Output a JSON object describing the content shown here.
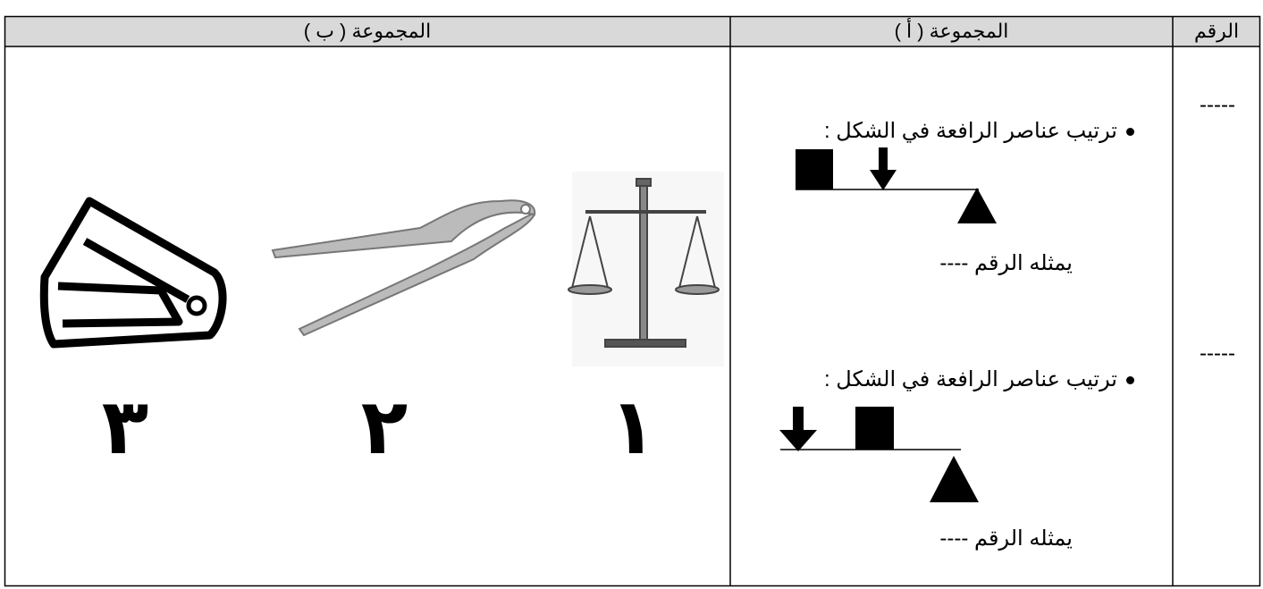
{
  "table": {
    "headers": [
      "الرقم",
      "المجموعة ( أ )",
      "المجموعة ( ب )"
    ],
    "number_column": [
      "-----",
      "-----"
    ],
    "group_a": [
      {
        "prompt": "ترتيب عناصر الرافعة في الشكل :",
        "answer": "يمثله الرقم ----"
      },
      {
        "prompt": "ترتيب عناصر الرافعة في الشكل :",
        "answer": "يمثله الرقم ----"
      }
    ],
    "group_b": [
      {
        "label": "١"
      },
      {
        "label": "٢"
      },
      {
        "label": "٣"
      }
    ]
  }
}
